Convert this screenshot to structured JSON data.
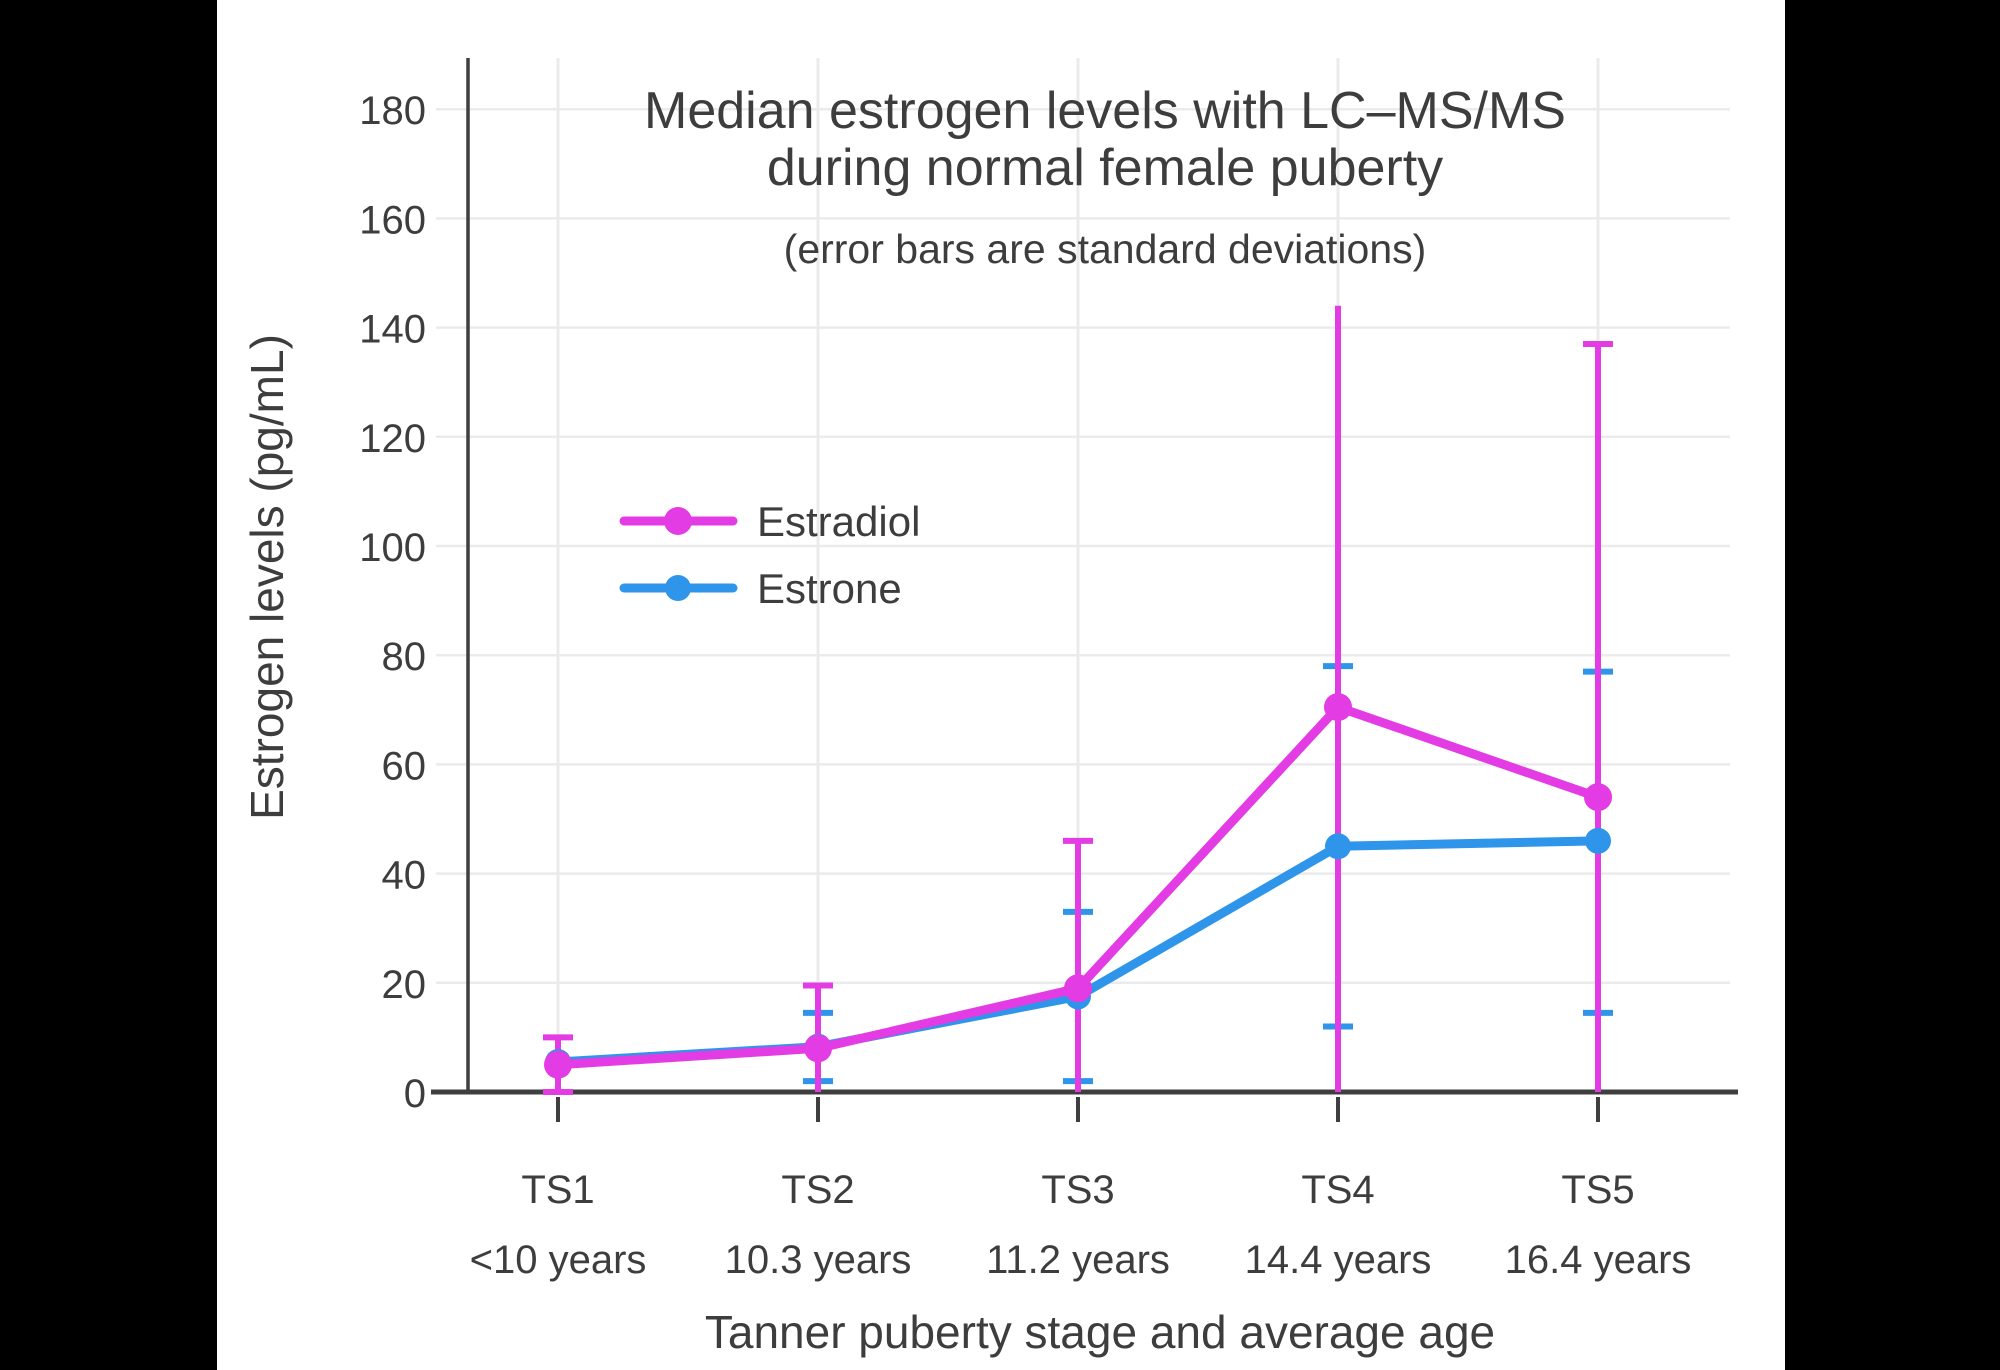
{
  "colors": {
    "estradiol": "#E43CE4",
    "estrone": "#2E95EA",
    "text": "#3D3D3D",
    "axis": "#3F3F3F",
    "grid": "#EBEBEB",
    "background": "#000000",
    "plot_background": "#FFFFFF"
  },
  "legend": {
    "items": [
      {
        "label": "Estradiol"
      },
      {
        "label": "Estrone"
      }
    ]
  },
  "chart_data": {
    "type": "line",
    "title": "Median estrogen levels with LC–MS/MS",
    "title_line2": "during normal female puberty",
    "subtitle": "(error bars are standard deviations)",
    "xlabel": "Tanner puberty stage and average age",
    "ylabel": "Estrogen levels (pg/mL)",
    "categories": [
      "TS1",
      "TS2",
      "TS3",
      "TS4",
      "TS5"
    ],
    "category_ages": [
      "<10 years",
      "10.3 years",
      "11.2 years",
      "14.4 years",
      "16.4 years"
    ],
    "y_ticks": [
      0,
      20,
      40,
      60,
      80,
      100,
      120,
      140,
      160,
      180
    ],
    "ylim": [
      0,
      189
    ],
    "grid": true,
    "legend_position": "inside-upper-left",
    "error_bar_meaning": "standard deviations",
    "series": [
      {
        "name": "Estrone",
        "color": "#2E95EA",
        "values": [
          5.5,
          8.3,
          17.5,
          45,
          46
        ],
        "error_low": [
          null,
          2,
          2,
          12,
          14.5
        ],
        "error_high": [
          null,
          14.5,
          33,
          78,
          77
        ],
        "cap_top": [
          false,
          true,
          true,
          true,
          true
        ],
        "cap_bottom": [
          false,
          true,
          true,
          true,
          true
        ]
      },
      {
        "name": "Estradiol",
        "color": "#E43CE4",
        "values": [
          5,
          8,
          19,
          70.5,
          54
        ],
        "error_low": [
          0,
          0,
          0,
          0,
          0
        ],
        "error_high": [
          10,
          19.5,
          46,
          144,
          137
        ],
        "cap_top": [
          true,
          true,
          true,
          false,
          true
        ],
        "cap_bottom": [
          true,
          false,
          false,
          false,
          false
        ]
      }
    ]
  }
}
